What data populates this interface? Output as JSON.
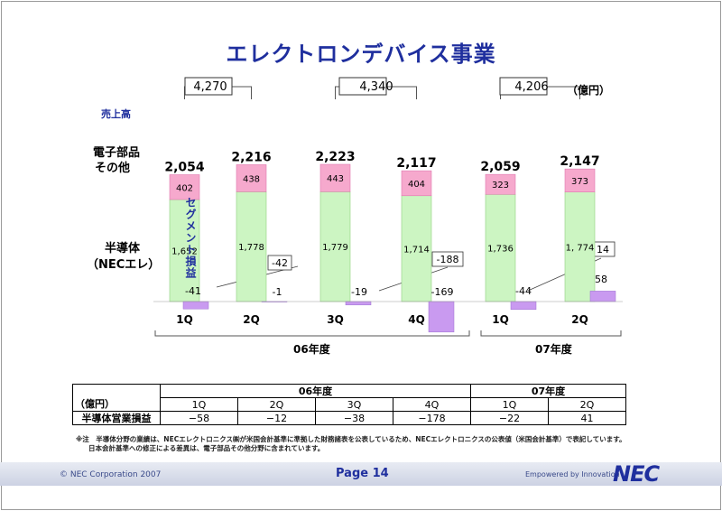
{
  "title": "エレクトロンデバイス事業",
  "unit": "（億円）",
  "labels": {
    "sales": "売上高",
    "other_line1": "電子部品",
    "other_line2": "その他",
    "semi_line1": "半導体",
    "semi_line2": "（NECエレ）",
    "segment": "セグメント損益"
  },
  "chart_data": {
    "type": "bar",
    "categories": [
      "1Q",
      "2Q",
      "3Q",
      "4Q",
      "1Q",
      "2Q"
    ],
    "fiscal_years": [
      {
        "label": "06年度",
        "categories": [
          "1Q",
          "2Q",
          "3Q",
          "4Q"
        ]
      },
      {
        "label": "07年度",
        "categories": [
          "1Q",
          "2Q"
        ]
      }
    ],
    "half_year_totals": [
      "4,270",
      "4,340",
      "4,206"
    ],
    "totals": [
      "2,054",
      "2,216",
      "2,223",
      "2,117",
      "2,059",
      "2,147"
    ],
    "series": [
      {
        "name": "半導体（NECエレ）",
        "values": [
          1652,
          1778,
          1779,
          1714,
          1736,
          1774
        ],
        "labels": [
          "1,652",
          "1,778",
          "1,779",
          "1,714",
          "1,736",
          "1, 774"
        ],
        "color": "#ccf5c2"
      },
      {
        "name": "電子部品その他",
        "values": [
          402,
          438,
          443,
          404,
          323,
          373
        ],
        "labels": [
          "402",
          "438",
          "443",
          "404",
          "323",
          "373"
        ],
        "color": "#f6a9cd"
      },
      {
        "name": "セグメント損益",
        "values": [
          -41,
          -1,
          -19,
          -169,
          -44,
          58
        ],
        "labels": [
          "-41",
          "-1",
          "-19",
          "-169",
          "-44",
          "58"
        ],
        "color": "#c99af0"
      }
    ],
    "semiconductor_segment_halves": [
      "-42",
      "-188",
      "14"
    ],
    "ylim": [
      -250,
      2300
    ]
  },
  "table": {
    "header_unit": "（億円）",
    "row_label": "半導体営業損益",
    "years": [
      "06年度",
      "07年度"
    ],
    "quarters": [
      "1Q",
      "2Q",
      "3Q",
      "4Q",
      "1Q",
      "2Q"
    ],
    "values": [
      "−58",
      "−12",
      "−38",
      "−178",
      "−22",
      "41"
    ]
  },
  "note": {
    "line1": "※注　半導体分野の業績は、NECエレクトロニクス㈱が米国会計基準に準拠した財務諸表を公表しているため、NECエレクトロニクスの公表値（米国会計基準）で表記しています。",
    "line2": "日本会計基準への修正による差異は、電子部品その他分野に含まれています。"
  },
  "footer": {
    "copyright": "© NEC Corporation 2007",
    "page": "Page 14",
    "tagline": "Empowered by Innovation",
    "logo": "NEC"
  },
  "colors": {
    "title": "#1f2f9e",
    "semi": "#ccf5c2",
    "other": "#f6a9cd",
    "segment": "#c99af0"
  }
}
